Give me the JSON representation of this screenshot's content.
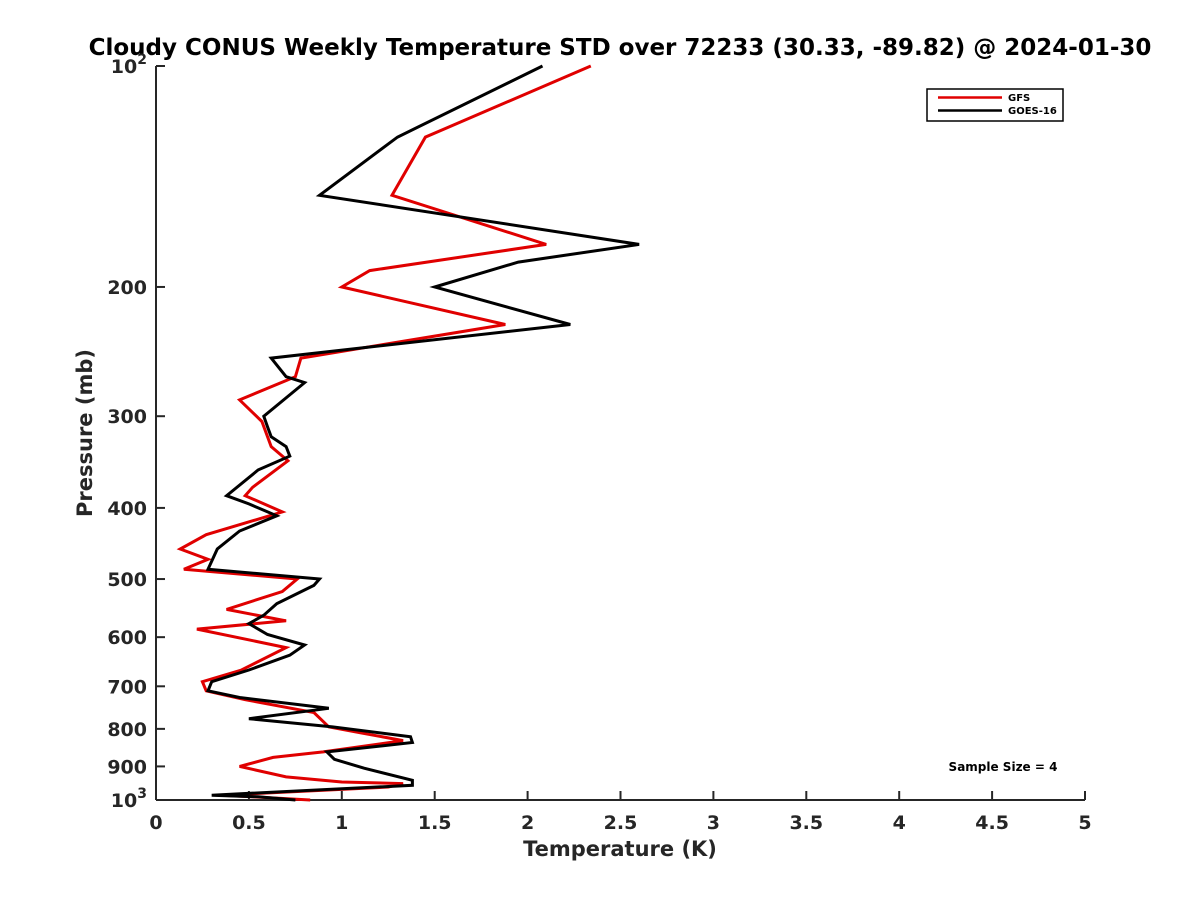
{
  "chart_data": {
    "type": "line",
    "title": "Cloudy CONUS Weekly Temperature STD over 72233 (30.33, -89.82) @ 2024-01-30",
    "xlabel": "Temperature (K)",
    "ylabel": "Pressure (mb)",
    "xlim": [
      0,
      5
    ],
    "ylim": [
      100,
      1000
    ],
    "y_scale": "log",
    "y_reversed": true,
    "grid": false,
    "legend_position": "top-right",
    "x_ticks": [
      {
        "value": 0,
        "label": "0"
      },
      {
        "value": 0.5,
        "label": "0.5"
      },
      {
        "value": 1,
        "label": "1"
      },
      {
        "value": 1.5,
        "label": "1.5"
      },
      {
        "value": 2,
        "label": "2"
      },
      {
        "value": 2.5,
        "label": "2.5"
      },
      {
        "value": 3,
        "label": "3"
      },
      {
        "value": 3.5,
        "label": "3.5"
      },
      {
        "value": 4,
        "label": "4"
      },
      {
        "value": 4.5,
        "label": "4.5"
      },
      {
        "value": 5,
        "label": "5"
      }
    ],
    "y_ticks": [
      {
        "value": 100,
        "base": "10",
        "exp": "2"
      },
      {
        "value": 200,
        "label": "200"
      },
      {
        "value": 300,
        "label": "300"
      },
      {
        "value": 400,
        "label": "400"
      },
      {
        "value": 500,
        "label": "500"
      },
      {
        "value": 600,
        "label": "600"
      },
      {
        "value": 700,
        "label": "700"
      },
      {
        "value": 800,
        "label": "800"
      },
      {
        "value": 900,
        "label": "900"
      },
      {
        "value": 1000,
        "base": "10",
        "exp": "3"
      }
    ],
    "annotation": "Sample Size = 4",
    "series": [
      {
        "name": "GFS",
        "color": "#e00000",
        "points": [
          [
            2.34,
            100
          ],
          [
            1.45,
            125
          ],
          [
            1.27,
            150
          ],
          [
            2.1,
            175
          ],
          [
            1.15,
            190
          ],
          [
            1.0,
            200
          ],
          [
            1.88,
            225
          ],
          [
            0.78,
            250
          ],
          [
            0.75,
            265
          ],
          [
            0.45,
            285
          ],
          [
            0.57,
            305
          ],
          [
            0.62,
            330
          ],
          [
            0.71,
            345
          ],
          [
            0.52,
            375
          ],
          [
            0.48,
            385
          ],
          [
            0.68,
            405
          ],
          [
            0.27,
            435
          ],
          [
            0.13,
            455
          ],
          [
            0.28,
            470
          ],
          [
            0.15,
            485
          ],
          [
            0.76,
            500
          ],
          [
            0.68,
            520
          ],
          [
            0.38,
            550
          ],
          [
            0.62,
            565
          ],
          [
            0.7,
            570
          ],
          [
            0.22,
            585
          ],
          [
            0.7,
            620
          ],
          [
            0.46,
            665
          ],
          [
            0.25,
            690
          ],
          [
            0.27,
            710
          ],
          [
            0.48,
            730
          ],
          [
            0.85,
            760
          ],
          [
            0.93,
            795
          ],
          [
            1.1,
            810
          ],
          [
            1.33,
            830
          ],
          [
            0.9,
            860
          ],
          [
            0.63,
            875
          ],
          [
            0.45,
            900
          ],
          [
            0.7,
            930
          ],
          [
            1.0,
            945
          ],
          [
            1.33,
            950
          ],
          [
            1.25,
            960
          ],
          [
            0.9,
            970
          ],
          [
            0.35,
            985
          ],
          [
            0.52,
            990
          ],
          [
            0.83,
            1000
          ]
        ]
      },
      {
        "name": "GOES-16",
        "color": "#000000",
        "points": [
          [
            2.08,
            100
          ],
          [
            1.3,
            125
          ],
          [
            0.88,
            150
          ],
          [
            2.6,
            175
          ],
          [
            1.95,
            185
          ],
          [
            1.5,
            200
          ],
          [
            2.23,
            225
          ],
          [
            0.62,
            250
          ],
          [
            0.7,
            265
          ],
          [
            0.8,
            270
          ],
          [
            0.58,
            300
          ],
          [
            0.6,
            310
          ],
          [
            0.62,
            320
          ],
          [
            0.7,
            330
          ],
          [
            0.72,
            340
          ],
          [
            0.55,
            355
          ],
          [
            0.38,
            385
          ],
          [
            0.5,
            395
          ],
          [
            0.65,
            410
          ],
          [
            0.45,
            430
          ],
          [
            0.33,
            455
          ],
          [
            0.28,
            485
          ],
          [
            0.88,
            500
          ],
          [
            0.85,
            510
          ],
          [
            0.65,
            540
          ],
          [
            0.58,
            560
          ],
          [
            0.5,
            575
          ],
          [
            0.6,
            595
          ],
          [
            0.8,
            615
          ],
          [
            0.72,
            635
          ],
          [
            0.5,
            665
          ],
          [
            0.3,
            690
          ],
          [
            0.28,
            710
          ],
          [
            0.45,
            725
          ],
          [
            0.93,
            750
          ],
          [
            0.5,
            775
          ],
          [
            0.95,
            795
          ],
          [
            1.37,
            820
          ],
          [
            1.38,
            835
          ],
          [
            0.92,
            860
          ],
          [
            0.96,
            880
          ],
          [
            1.12,
            905
          ],
          [
            1.38,
            940
          ],
          [
            1.38,
            955
          ],
          [
            0.3,
            985
          ],
          [
            0.55,
            990
          ],
          [
            0.75,
            1000
          ]
        ]
      }
    ]
  }
}
